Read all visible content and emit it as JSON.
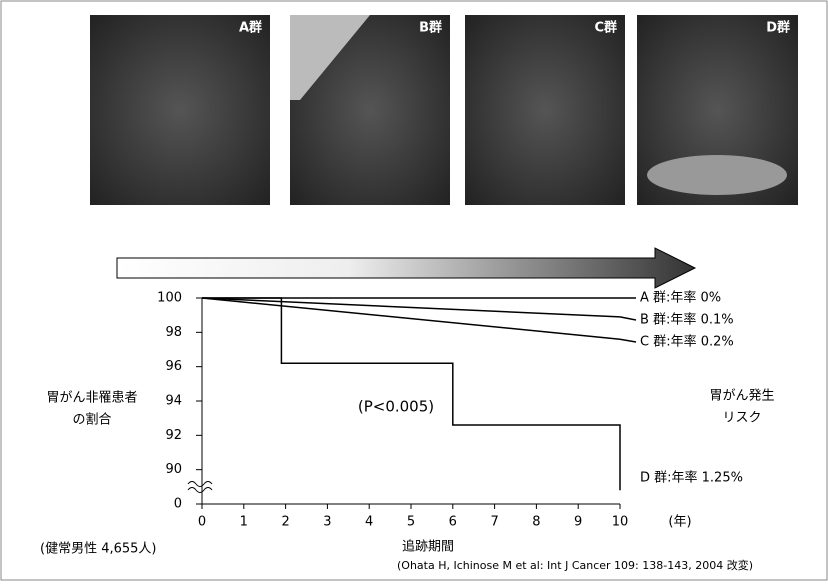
{
  "chart_data": {
    "type": "line",
    "images": [
      "A群",
      "B群",
      "C群",
      "D群"
    ],
    "y_label": [
      "胃がん非罹患者",
      "の割合"
    ],
    "side_label": [
      "胃がん発生",
      "リスク"
    ],
    "annotation": "(P<0.005)",
    "x_unit": "(年)",
    "x_label": "追跡期間",
    "cohort": "(健常男性  4,655人)",
    "source": "(Ohata H, Ichinose M  et al: Int J Cancer 109: 138-143, 2004 改変)",
    "xlim": [
      0,
      10
    ],
    "xticks": [
      0,
      1,
      2,
      3,
      4,
      5,
      6,
      7,
      8,
      9,
      10
    ],
    "ylim": [
      88,
      100
    ],
    "yticks": [
      0,
      90,
      92,
      94,
      96,
      98,
      100
    ],
    "y_break": true,
    "series": [
      {
        "name": "A 群:年率 0%",
        "color": "#000000",
        "x": [
          0,
          10
        ],
        "values": [
          100,
          100
        ]
      },
      {
        "name": "B 群:年率 0.1%",
        "color": "#000000",
        "x": [
          0,
          10
        ],
        "values": [
          100,
          98.9
        ]
      },
      {
        "name": "C 群:年率 0.2%",
        "color": "#000000",
        "x": [
          0,
          10
        ],
        "values": [
          100,
          97.6
        ]
      },
      {
        "name": "D 群:年率 1.25%",
        "color": "#000000",
        "x": [
          0,
          1.9,
          1.9,
          6,
          6,
          10,
          10
        ],
        "values": [
          100,
          100,
          96.2,
          96.2,
          92.6,
          92.6,
          88.8
        ]
      }
    ]
  }
}
